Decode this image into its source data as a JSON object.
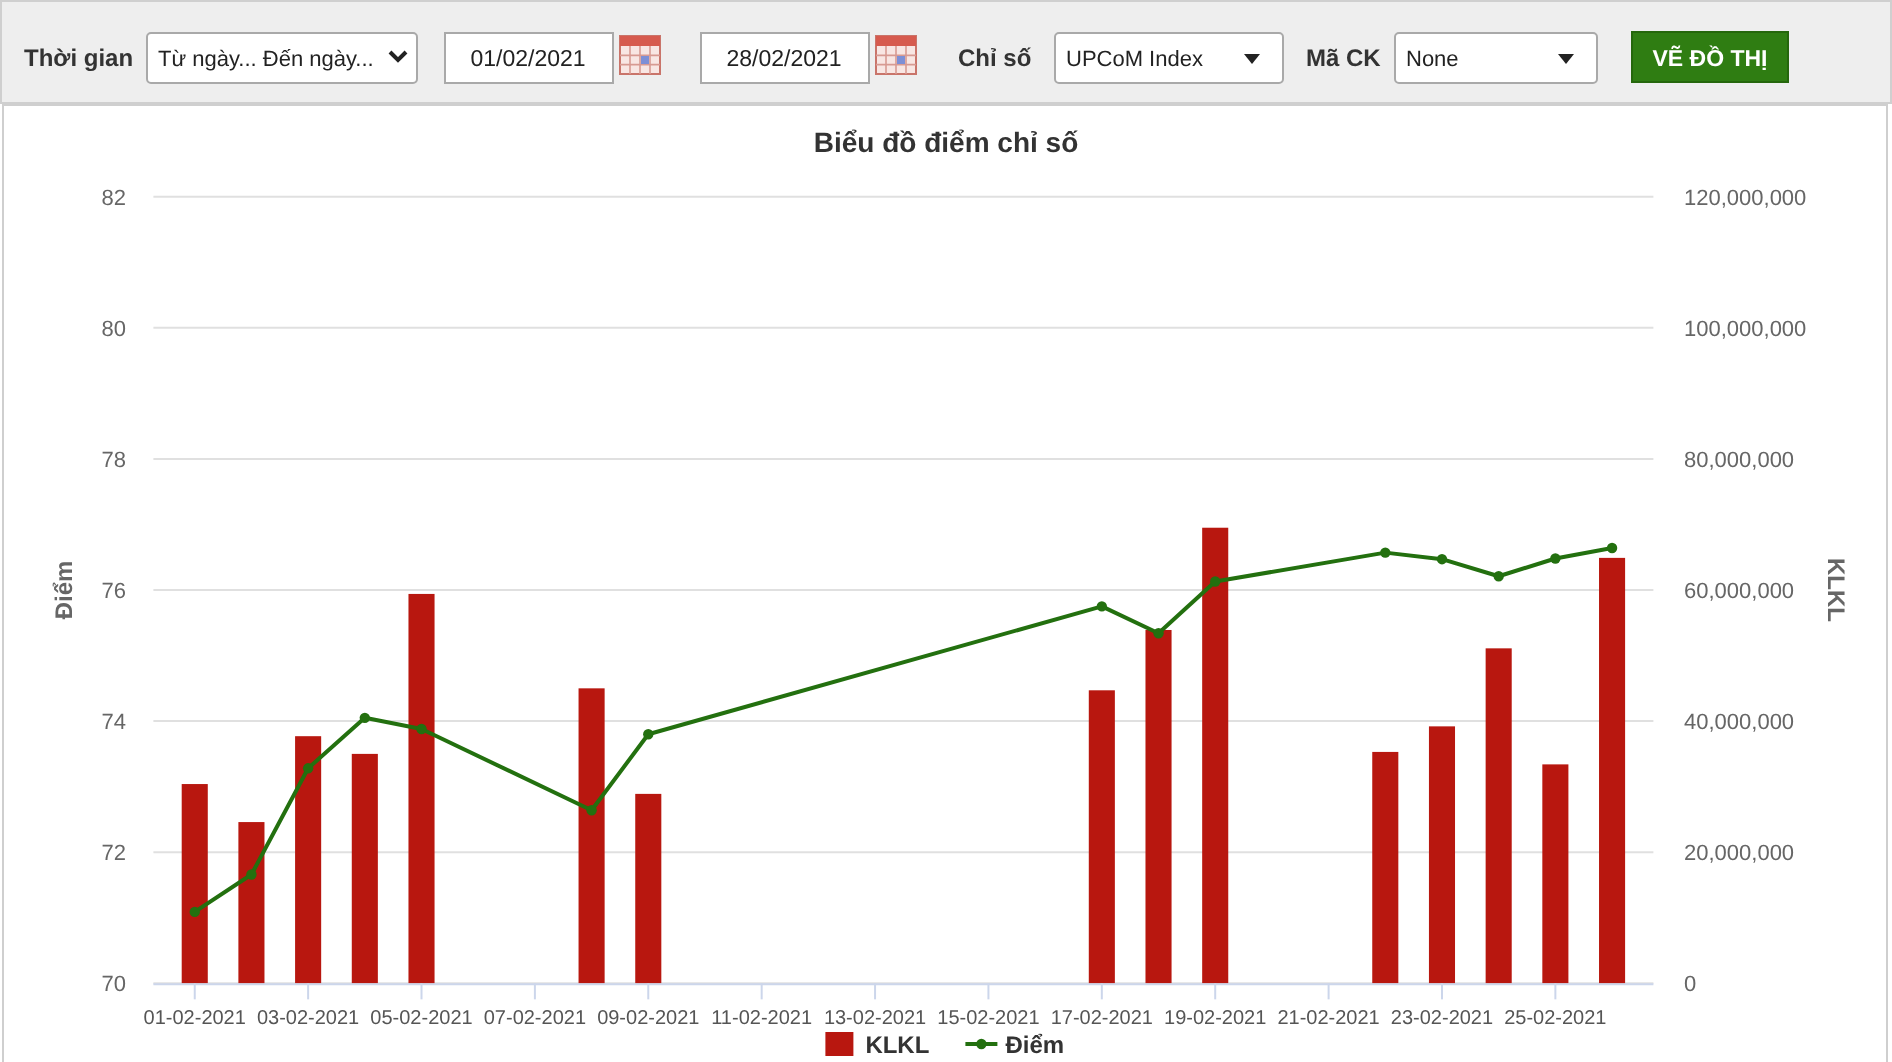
{
  "chart_data": [
    {
      "type": "other",
      "annotations": [
        "Thời gian",
        "Từ ngày... Đến ngày...",
        "01/02/2021",
        "28/02/2021",
        "Chỉ số",
        "UPCoM Index",
        "Mã CK",
        "None",
        "VẼ ĐỒ THỊ"
      ]
    },
    {
      "type": "bar",
      "title": "Biểu đồ điểm chỉ số",
      "ylabel": "Điểm",
      "y2label": "KLKL",
      "x": [
        "2021-02-01",
        "2021-02-02",
        "2021-02-03",
        "2021-02-04",
        "2021-02-05",
        "2021-02-08",
        "2021-02-09",
        "2021-02-17",
        "2021-02-18",
        "2021-02-19",
        "2021-02-22",
        "2021-02-23",
        "2021-02-24",
        "2021-02-25",
        "2021-02-26"
      ],
      "series": [
        {
          "name": "KLKL",
          "axis": "y2",
          "color": "#b8170f",
          "values": [
            30400000,
            24600000,
            37700000,
            35000000,
            59400000,
            45000000,
            28900000,
            44700000,
            53900000,
            69500000,
            35300000,
            39200000,
            51100000,
            33400000,
            64900000
          ]
        },
        {
          "name": "Điểm",
          "type": "line",
          "color": "#23700f",
          "values": [
            71.09,
            71.66,
            73.28,
            74.05,
            73.88,
            72.64,
            73.8,
            75.75,
            75.34,
            76.13,
            76.57,
            76.47,
            76.21,
            76.48,
            76.64
          ]
        }
      ],
      "xlim": [
        "2021-01-31T06:30",
        "2021-02-26T17:30"
      ],
      "xticks": [
        {
          "value": "2021-02-01",
          "label": "01-02-2021"
        },
        {
          "value": "2021-02-03",
          "label": "03-02-2021"
        },
        {
          "value": "2021-02-05",
          "label": "05-02-2021"
        },
        {
          "value": "2021-02-07",
          "label": "07-02-2021"
        },
        {
          "value": "2021-02-09",
          "label": "09-02-2021"
        },
        {
          "value": "2021-02-11",
          "label": "11-02-2021"
        },
        {
          "value": "2021-02-13",
          "label": "13-02-2021"
        },
        {
          "value": "2021-02-15",
          "label": "15-02-2021"
        },
        {
          "value": "2021-02-17",
          "label": "17-02-2021"
        },
        {
          "value": "2021-02-19",
          "label": "19-02-2021"
        },
        {
          "value": "2021-02-21",
          "label": "21-02-2021"
        },
        {
          "value": "2021-02-23",
          "label": "23-02-2021"
        },
        {
          "value": "2021-02-25",
          "label": "25-02-2021"
        }
      ],
      "ylim": [
        70,
        82
      ],
      "yticks": [
        70,
        72,
        74,
        76,
        78,
        80,
        82
      ],
      "y2lim": [
        0,
        120000000
      ],
      "y2ticks": [
        0,
        {
          "value": 20000000,
          "label": "20,000,000"
        },
        {
          "value": 40000000,
          "label": "40,000,000"
        },
        {
          "value": 60000000,
          "label": "60,000,000"
        },
        {
          "value": 80000000,
          "label": "80,000,000"
        },
        {
          "value": 100000000,
          "label": "100,000,000"
        },
        {
          "value": 120000000,
          "label": "120,000,000"
        }
      ],
      "grid": "y",
      "legend": "bottom",
      "marker": "circle"
    }
  ]
}
